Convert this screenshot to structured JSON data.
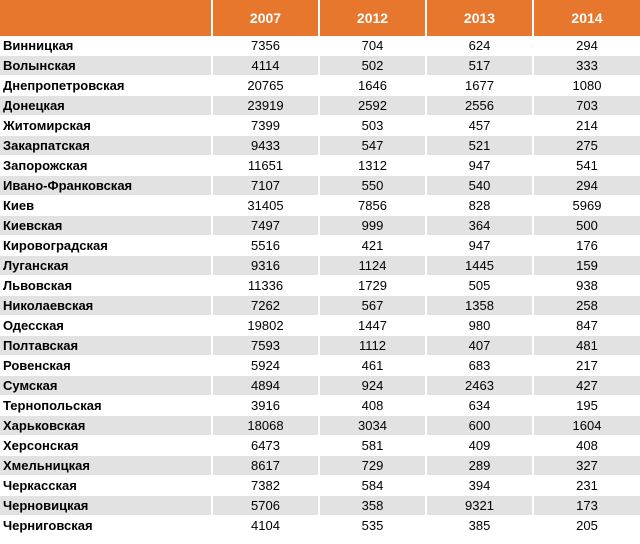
{
  "table": {
    "corner_label": "",
    "columns": [
      "2007",
      "2012",
      "2013",
      "2014"
    ],
    "rows": [
      {
        "region": "Винницкая",
        "values": [
          "7356",
          "704",
          "624",
          "294"
        ]
      },
      {
        "region": "Волынская",
        "values": [
          "4114",
          "502",
          "517",
          "333"
        ]
      },
      {
        "region": "Днепропетровская",
        "values": [
          "20765",
          "1646",
          "1677",
          "1080"
        ]
      },
      {
        "region": "Донецкая",
        "values": [
          "23919",
          "2592",
          "2556",
          "703"
        ]
      },
      {
        "region": "Житомирская",
        "values": [
          "7399",
          "503",
          "457",
          "214"
        ]
      },
      {
        "region": "Закарпатская",
        "values": [
          "9433",
          "547",
          "521",
          "275"
        ]
      },
      {
        "region": "Запорожская",
        "values": [
          "11651",
          "1312",
          "947",
          "541"
        ]
      },
      {
        "region": "Ивано-Франковская",
        "values": [
          "7107",
          "550",
          "540",
          "294"
        ]
      },
      {
        "region": "Киев",
        "values": [
          "31405",
          "7856",
          "828",
          "5969"
        ]
      },
      {
        "region": "Киевская",
        "values": [
          "7497",
          "999",
          "364",
          "500"
        ]
      },
      {
        "region": "Кировоградская",
        "values": [
          "5516",
          "421",
          "947",
          "176"
        ]
      },
      {
        "region": "Луганская",
        "values": [
          "9316",
          "1124",
          "1445",
          "159"
        ]
      },
      {
        "region": "Львовская",
        "values": [
          "11336",
          "1729",
          "505",
          "938"
        ]
      },
      {
        "region": "Николаевская",
        "values": [
          "7262",
          "567",
          "1358",
          "258"
        ]
      },
      {
        "region": "Одесская",
        "values": [
          "19802",
          "1447",
          "980",
          "847"
        ]
      },
      {
        "region": "Полтавская",
        "values": [
          "7593",
          "1112",
          "407",
          "481"
        ]
      },
      {
        "region": "Ровенская",
        "values": [
          "5924",
          "461",
          "683",
          "217"
        ]
      },
      {
        "region": "Сумская",
        "values": [
          "4894",
          "924",
          "2463",
          "427"
        ]
      },
      {
        "region": "Тернопольская",
        "values": [
          "3916",
          "408",
          "634",
          "195"
        ]
      },
      {
        "region": "Харьковская",
        "values": [
          "18068",
          "3034",
          "600",
          "1604"
        ]
      },
      {
        "region": "Херсонская",
        "values": [
          "6473",
          "581",
          "409",
          "408"
        ]
      },
      {
        "region": "Хмельницкая",
        "values": [
          "8617",
          "729",
          "289",
          "327"
        ]
      },
      {
        "region": "Черкасская",
        "values": [
          "7382",
          "584",
          "394",
          "231"
        ]
      },
      {
        "region": "Черновицкая",
        "values": [
          "5706",
          "358",
          "9321",
          "173"
        ]
      },
      {
        "region": "Черниговская",
        "values": [
          "4104",
          "535",
          "385",
          "205"
        ]
      }
    ]
  },
  "colors": {
    "header_background": "#e8772e",
    "header_text": "#ffffff",
    "row_stripe": "#e2e2e2"
  }
}
